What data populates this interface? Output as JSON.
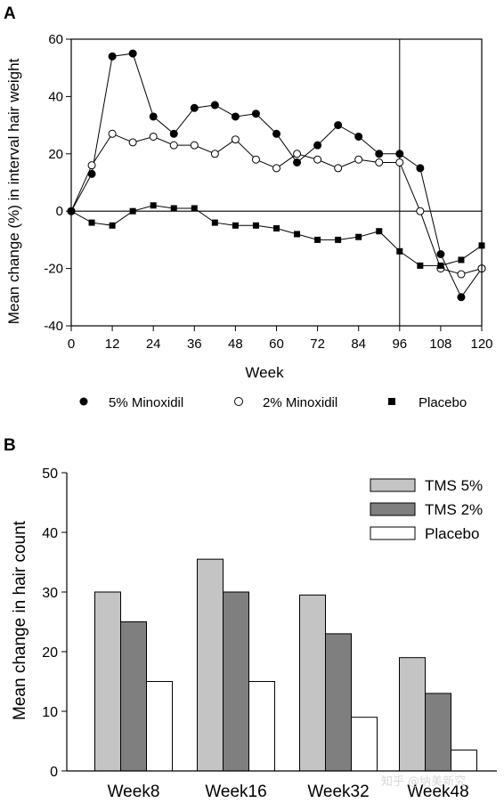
{
  "watermark": "知乎 @纳美新究",
  "chart_data": [
    {
      "panel": "A",
      "type": "line",
      "title": "",
      "xlabel": "Week",
      "ylabel": "Mean change (%) in interval hair weight",
      "xlim": [
        0,
        120
      ],
      "ylim": [
        -40,
        60
      ],
      "xticks": [
        0,
        12,
        24,
        36,
        48,
        60,
        72,
        84,
        96,
        108,
        120
      ],
      "yticks": [
        -40,
        -20,
        0,
        20,
        40,
        60
      ],
      "reference_lines": {
        "y": 0,
        "x": 96
      },
      "legend_position": "bottom",
      "series": [
        {
          "name": "5% Minoxidil",
          "marker": "filled-circle",
          "x": [
            0,
            6,
            12,
            18,
            24,
            30,
            36,
            42,
            48,
            54,
            60,
            66,
            72,
            78,
            84,
            90,
            96,
            102,
            108,
            114,
            120
          ],
          "y": [
            0,
            13,
            54,
            55,
            33,
            27,
            36,
            37,
            33,
            34,
            27,
            17,
            23,
            30,
            26,
            20,
            20,
            15,
            -15,
            -30,
            -20
          ]
        },
        {
          "name": "2% Minoxidil",
          "marker": "open-circle",
          "x": [
            0,
            6,
            12,
            18,
            24,
            30,
            36,
            42,
            48,
            54,
            60,
            66,
            72,
            78,
            84,
            90,
            96,
            102,
            108,
            114,
            120
          ],
          "y": [
            0,
            16,
            27,
            24,
            26,
            23,
            23,
            20,
            25,
            18,
            15,
            20,
            18,
            15,
            18,
            17,
            17,
            0,
            -20,
            -22,
            -20
          ]
        },
        {
          "name": "Placebo",
          "marker": "filled-square",
          "x": [
            0,
            6,
            12,
            18,
            24,
            30,
            36,
            42,
            48,
            54,
            60,
            66,
            72,
            78,
            84,
            90,
            96,
            102,
            108,
            114,
            120
          ],
          "y": [
            0,
            -4,
            -5,
            0,
            2,
            1,
            1,
            -4,
            -5,
            -5,
            -6,
            -8,
            -10,
            -10,
            -9,
            -7,
            -14,
            -19,
            -19,
            -17,
            -12
          ]
        }
      ]
    },
    {
      "panel": "B",
      "type": "bar",
      "title": "",
      "xlabel": "",
      "ylabel": "Mean change in hair count",
      "ylim": [
        0,
        50
      ],
      "yticks": [
        0,
        10,
        20,
        30,
        40,
        50
      ],
      "categories": [
        "Week8",
        "Week16",
        "Week32",
        "Week48"
      ],
      "legend_position": "top-right",
      "series": [
        {
          "name": "TMS 5%",
          "color": "#c4c4c4",
          "values": [
            30,
            35.5,
            29.5,
            19
          ]
        },
        {
          "name": "TMS 2%",
          "color": "#7f7f7f",
          "values": [
            25,
            30,
            23,
            13
          ]
        },
        {
          "name": "Placebo",
          "color": "#ffffff",
          "values": [
            15,
            15,
            9,
            3.5
          ]
        }
      ]
    }
  ]
}
